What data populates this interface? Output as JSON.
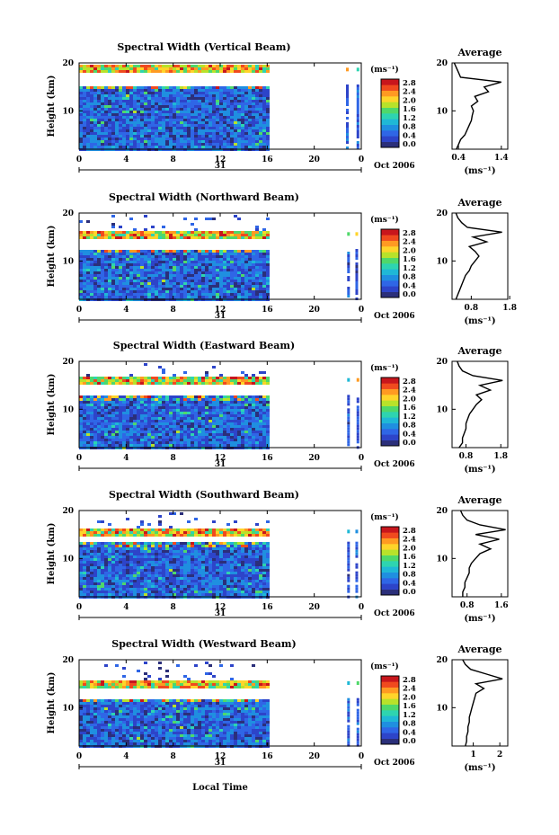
{
  "figure": {
    "date_label": "Oct 2006",
    "day_label": "31",
    "xlabel": "Local Time",
    "colorbar_unit": "(ms⁻¹)",
    "colorbar_ticks": [
      "0.0",
      "0.4",
      "0.8",
      "1.2",
      "1.6",
      "2.0",
      "2.4",
      "2.8"
    ],
    "colorbar_colors": [
      "#2b2f7a",
      "#2d44c9",
      "#2f66e6",
      "#1f8fe0",
      "#1fb8d6",
      "#2ed4b0",
      "#4fd86a",
      "#b8e22a",
      "#ffd42a",
      "#ff9a22",
      "#f04a1e",
      "#c8161c"
    ]
  },
  "chart_data": [
    {
      "type": "heatmap",
      "title": "Spectral Width (Vertical Beam)",
      "ylabel": "Height (km)",
      "xlim": [
        0,
        24
      ],
      "ylim": [
        2,
        20
      ],
      "x_ticks": [
        "0",
        "4",
        "8",
        "12",
        "16",
        "20",
        "0"
      ],
      "y_ticks": [
        "10",
        "20"
      ],
      "data_x_range": [
        0,
        16
      ],
      "late_columns_x": [
        22.7,
        23.6
      ],
      "clear_band_km": [
        15.5,
        18.0
      ],
      "profile": {
        "title": "Average",
        "xlabel": "(ms⁻¹)",
        "xlim": [
          0.25,
          1.55
        ],
        "x_ticks": [
          "0.4",
          "1.4"
        ],
        "ylim": [
          2,
          20
        ],
        "y_ticks": [
          "10",
          "20"
        ],
        "height_km": [
          2,
          3,
          4,
          5,
          6,
          7,
          8,
          9,
          10,
          11,
          12,
          13,
          14,
          15,
          16,
          17,
          18,
          19,
          20
        ],
        "width_ms": [
          0.35,
          0.4,
          0.45,
          0.55,
          0.6,
          0.65,
          0.7,
          0.72,
          0.75,
          0.7,
          0.85,
          0.78,
          1.1,
          1.0,
          1.4,
          0.45,
          0.4,
          0.35,
          0.3
        ]
      }
    },
    {
      "type": "heatmap",
      "title": "Spectral Width (Northward Beam)",
      "ylabel": "Height (km)",
      "xlim": [
        0,
        24
      ],
      "ylim": [
        2,
        20
      ],
      "x_ticks": [
        "0",
        "4",
        "8",
        "12",
        "16",
        "20",
        "0"
      ],
      "y_ticks": [
        "10",
        "20"
      ],
      "data_x_range": [
        0,
        16
      ],
      "late_columns_x": [
        22.8,
        23.5
      ],
      "clear_band_km": [
        12.5,
        15.0
      ],
      "profile": {
        "title": "Average",
        "xlabel": "(ms⁻¹)",
        "xlim": [
          0.3,
          1.75
        ],
        "x_ticks": [
          "0.8",
          "1.8"
        ],
        "ylim": [
          2,
          20
        ],
        "y_ticks": [
          "10",
          "20"
        ],
        "height_km": [
          2,
          3,
          4,
          5,
          6,
          7,
          8,
          9,
          10,
          11,
          12,
          13,
          14,
          15,
          16,
          17,
          18,
          19,
          20
        ],
        "width_ms": [
          0.4,
          0.45,
          0.5,
          0.55,
          0.6,
          0.65,
          0.75,
          0.8,
          0.9,
          1.0,
          0.9,
          0.75,
          1.2,
          0.85,
          1.6,
          0.7,
          0.55,
          0.45,
          0.4
        ]
      }
    },
    {
      "type": "heatmap",
      "title": "Spectral Width (Eastward Beam)",
      "ylabel": "Height (km)",
      "xlim": [
        0,
        24
      ],
      "ylim": [
        2,
        20
      ],
      "x_ticks": [
        "0",
        "4",
        "8",
        "12",
        "16",
        "20",
        "0"
      ],
      "y_ticks": [
        "10",
        "20"
      ],
      "data_x_range": [
        0,
        16
      ],
      "late_columns_x": [
        22.8,
        23.6
      ],
      "clear_band_km": [
        13.0,
        15.5
      ],
      "profile": {
        "title": "Average",
        "xlabel": "(ms⁻¹)",
        "xlim": [
          0.4,
          2.0
        ],
        "x_ticks": [
          "0.8",
          "1.8"
        ],
        "ylim": [
          2,
          20
        ],
        "y_ticks": [
          "10",
          "20"
        ],
        "height_km": [
          2,
          3,
          4,
          5,
          6,
          7,
          8,
          9,
          10,
          11,
          12,
          13,
          14,
          15,
          16,
          17,
          18,
          19,
          20
        ],
        "width_ms": [
          0.6,
          0.7,
          0.7,
          0.75,
          0.8,
          0.8,
          0.85,
          0.9,
          1.0,
          1.1,
          1.25,
          1.1,
          1.5,
          1.2,
          1.85,
          1.0,
          0.7,
          0.6,
          0.55
        ]
      }
    },
    {
      "type": "heatmap",
      "title": "Spectral Width (Southward Beam)",
      "ylabel": "Height (km)",
      "xlim": [
        0,
        24
      ],
      "ylim": [
        2,
        20
      ],
      "x_ticks": [
        "0",
        "4",
        "8",
        "12",
        "16",
        "20",
        "0"
      ],
      "y_ticks": [
        "10",
        "20"
      ],
      "data_x_range": [
        0,
        16
      ],
      "late_columns_x": [
        22.8,
        23.5
      ],
      "clear_band_km": [
        13.5,
        15.0
      ],
      "profile": {
        "title": "Average",
        "xlabel": "(ms⁻¹)",
        "xlim": [
          0.45,
          1.75
        ],
        "x_ticks": [
          "0.8",
          "1.6"
        ],
        "ylim": [
          2,
          20
        ],
        "y_ticks": [
          "10",
          "20"
        ],
        "height_km": [
          2,
          3,
          4,
          5,
          6,
          7,
          8,
          9,
          10,
          11,
          12,
          13,
          14,
          15,
          16,
          17,
          18,
          19,
          20
        ],
        "width_ms": [
          0.7,
          0.7,
          0.75,
          0.75,
          0.8,
          0.85,
          0.85,
          0.9,
          1.0,
          1.1,
          1.35,
          1.1,
          1.55,
          1.0,
          1.7,
          1.1,
          0.8,
          0.7,
          0.65
        ]
      }
    },
    {
      "type": "heatmap",
      "title": "Spectral Width (Westward Beam)",
      "ylabel": "Height (km)",
      "xlim": [
        0,
        24
      ],
      "ylim": [
        2,
        20
      ],
      "x_ticks": [
        "0",
        "4",
        "8",
        "12",
        "16",
        "20",
        "0"
      ],
      "y_ticks": [
        "10",
        "20"
      ],
      "data_x_range": [
        0,
        16
      ],
      "late_columns_x": [
        22.8,
        23.6
      ],
      "clear_band_km": [
        12.0,
        14.5
      ],
      "profile": {
        "title": "Average",
        "xlabel": "(ms⁻¹)",
        "xlim": [
          0.2,
          2.3
        ],
        "x_ticks": [
          "1",
          "2"
        ],
        "ylim": [
          2,
          20
        ],
        "y_ticks": [
          "10",
          "20"
        ],
        "height_km": [
          2,
          3,
          4,
          5,
          6,
          7,
          8,
          9,
          10,
          11,
          12,
          13,
          14,
          15,
          16,
          17,
          18,
          19,
          20
        ],
        "width_ms": [
          0.7,
          0.75,
          0.75,
          0.8,
          0.8,
          0.85,
          0.85,
          0.9,
          0.95,
          1.0,
          1.05,
          1.1,
          1.4,
          1.1,
          2.1,
          1.5,
          0.9,
          0.7,
          0.6
        ]
      }
    }
  ]
}
